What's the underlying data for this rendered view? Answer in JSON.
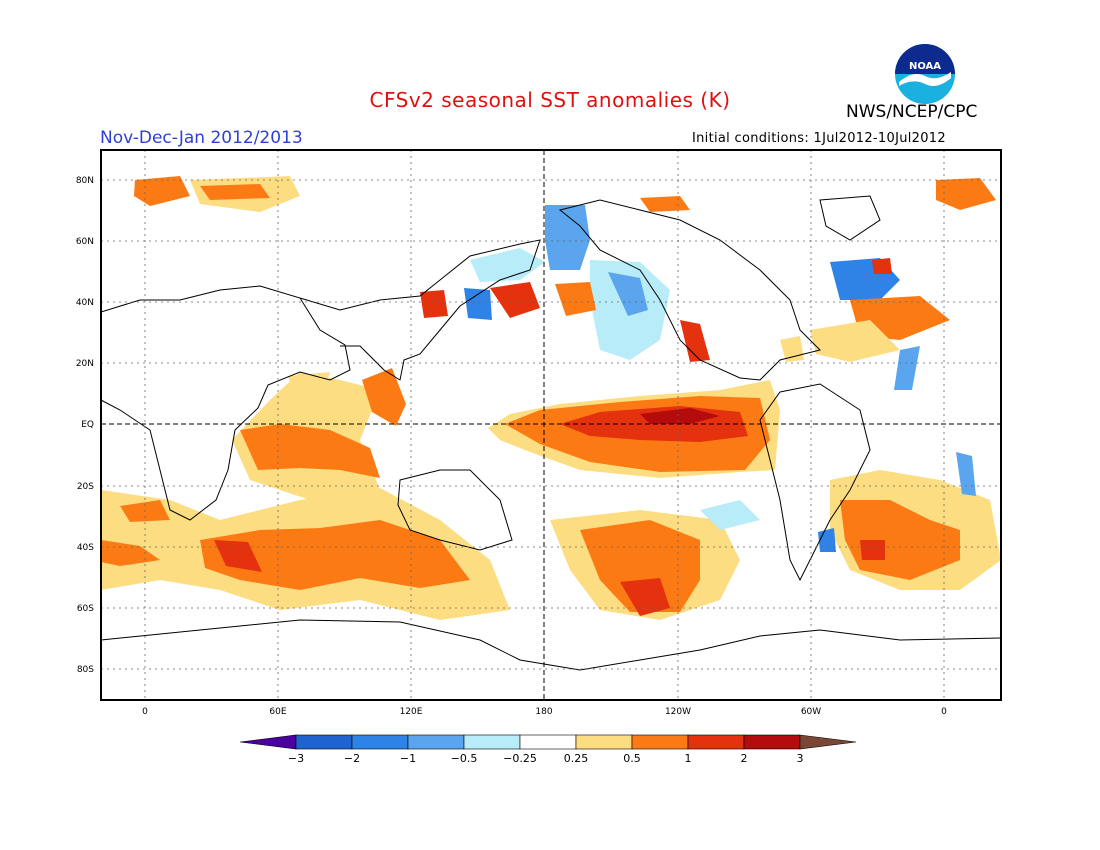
{
  "header": {
    "title": "CFSv2 seasonal SST anomalies (K)",
    "agency": "NWS/NCEP/CPC",
    "season": "Nov-Dec-Jan 2012/2013",
    "initial_conditions": "Initial conditions: 1Jul2012-10Jul2012",
    "logo_text": "NOAA"
  },
  "map": {
    "projection": "cylindrical equidistant",
    "lat_labels": [
      "80N",
      "60N",
      "40N",
      "20N",
      "EQ",
      "20S",
      "40S",
      "60S",
      "80S"
    ],
    "lon_labels": [
      "0",
      "60E",
      "120E",
      "180",
      "120W",
      "60W",
      "0"
    ]
  },
  "colorbar": {
    "labels": [
      "-3",
      "-2",
      "-1",
      "-0.5",
      "-0.25",
      "0.25",
      "0.5",
      "1",
      "2",
      "3"
    ],
    "colors": [
      "#4b00a0",
      "#1e63cf",
      "#2f82e6",
      "#5aa5ee",
      "#b7ecf8",
      "#ffffff",
      "#fddd82",
      "#fb7a14",
      "#e4310e",
      "#b40c0c",
      "#7a4736"
    ]
  }
}
